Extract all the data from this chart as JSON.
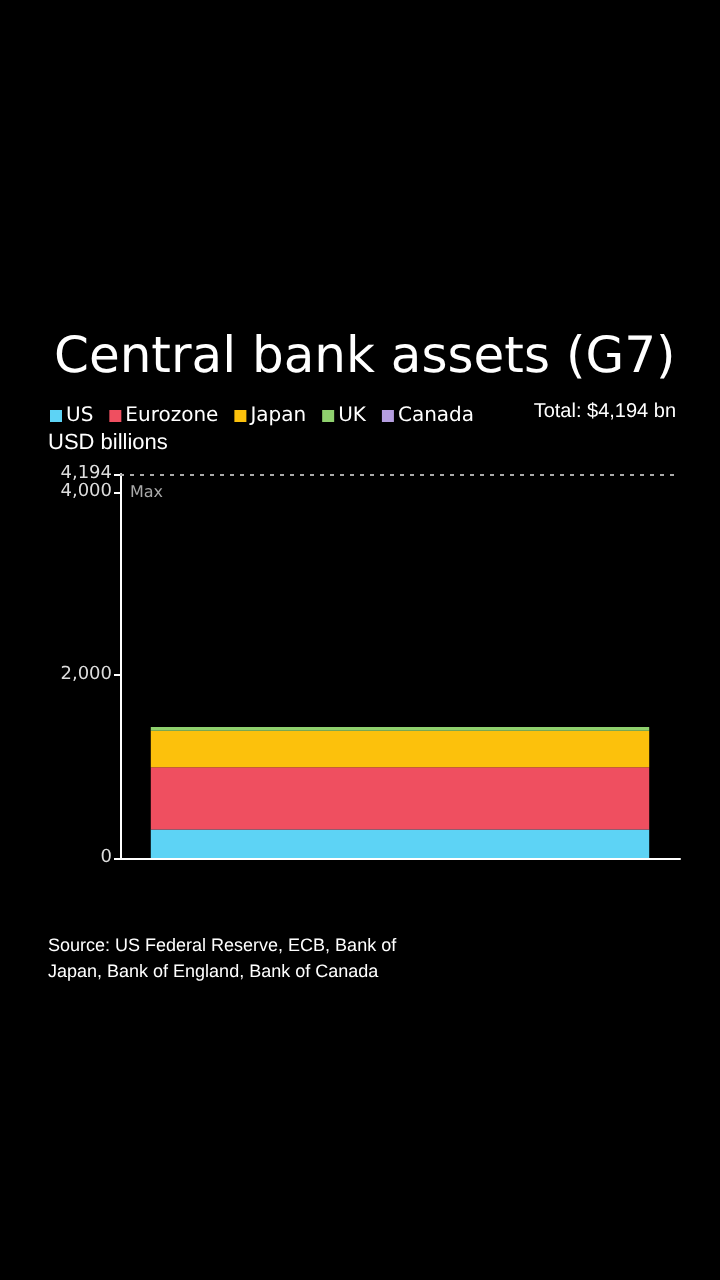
{
  "chart_data": {
    "type": "bar",
    "title": "Central bank assets (G7)",
    "ylabel": "USD billions",
    "stacked": true,
    "categories": [
      null
    ],
    "series": [
      {
        "name": "US",
        "color": "#5dd3f5",
        "values": [
          310
        ]
      },
      {
        "name": "Eurozone",
        "color": "#ef4f60",
        "values": [
          680
        ]
      },
      {
        "name": "Japan",
        "color": "#fcc10c",
        "values": [
          400
        ]
      },
      {
        "name": "UK",
        "color": "#8fd16e",
        "values": [
          40
        ]
      },
      {
        "name": "Canada",
        "color": "#b59ee0",
        "values": [
          0
        ]
      }
    ],
    "ylim": [
      0,
      4194
    ],
    "yticks": [
      0,
      {
        "value": 2000,
        "label": "2,000"
      },
      {
        "value": 4000,
        "label": "4,000"
      },
      {
        "value": 4194,
        "label": "4,194"
      }
    ],
    "ref_lines": [
      {
        "axis": "y",
        "value": 4194,
        "label": "Max",
        "line_style": "dotted",
        "color": "#aaaaaa"
      }
    ],
    "grid": false,
    "legend": "top left",
    "annotations": [
      "Total: $4,194 bn",
      "Source: US Federal Reserve, ECB, Bank of Japan, Bank of England, Bank of Canada"
    ]
  }
}
